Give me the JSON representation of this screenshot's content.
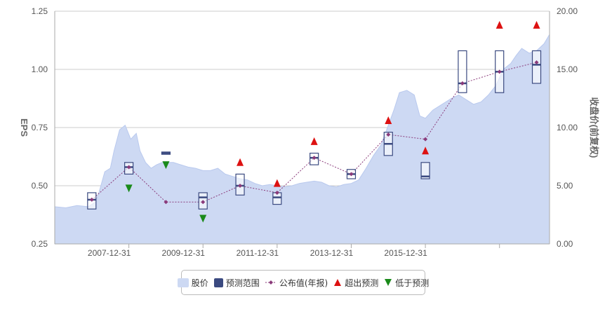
{
  "chart_data": {
    "type": "line",
    "left_axis": {
      "label": "EPS",
      "range": [
        0.25,
        1.25
      ],
      "ticks": [
        "0.25",
        "0.50",
        "0.75",
        "1.00",
        "1.25"
      ]
    },
    "right_axis": {
      "label": "收盘价(前复权)",
      "range": [
        0,
        20
      ],
      "ticks": [
        "0.00",
        "5.00",
        "10.00",
        "15.00",
        "20.00"
      ]
    },
    "x_range": [
      2006.0,
      2019.35
    ],
    "x_ticks": [
      {
        "x": 2008.0,
        "label": "2007-12-31"
      },
      {
        "x": 2010.0,
        "label": "2009-12-31"
      },
      {
        "x": 2012.0,
        "label": "2011-12-31"
      },
      {
        "x": 2014.0,
        "label": "2013-12-31"
      },
      {
        "x": 2016.0,
        "label": "2015-12-31"
      },
      {
        "x": 2018.0,
        "label": ""
      }
    ],
    "grid": true,
    "legend": [
      "股价",
      "预测范围",
      "公布值(年报)",
      "超出预测",
      "低于预测"
    ],
    "colors": {
      "price_fill": "#cdd9f3",
      "price_line": "#b9c9ee",
      "range_box": "#3b4a80",
      "eps_line": "#8a3a7a",
      "above": "#dd1111",
      "below": "#1a8a1a",
      "grid": "#cccccc"
    },
    "price_series": [
      [
        2006.0,
        3.2
      ],
      [
        2006.3,
        3.1
      ],
      [
        2006.6,
        3.3
      ],
      [
        2006.9,
        3.2
      ],
      [
        2007.1,
        3.6
      ],
      [
        2007.2,
        4.5
      ],
      [
        2007.35,
        6.2
      ],
      [
        2007.5,
        6.5
      ],
      [
        2007.6,
        8.0
      ],
      [
        2007.75,
        9.8
      ],
      [
        2007.9,
        10.2
      ],
      [
        2008.05,
        9.0
      ],
      [
        2008.2,
        9.5
      ],
      [
        2008.3,
        8.0
      ],
      [
        2008.45,
        7.0
      ],
      [
        2008.6,
        6.5
      ],
      [
        2008.75,
        6.8
      ],
      [
        2008.9,
        7.0
      ],
      [
        2009.2,
        7.0
      ],
      [
        2009.4,
        6.8
      ],
      [
        2009.6,
        6.6
      ],
      [
        2009.8,
        6.5
      ],
      [
        2010.0,
        6.3
      ],
      [
        2010.2,
        6.3
      ],
      [
        2010.4,
        6.5
      ],
      [
        2010.6,
        6.0
      ],
      [
        2010.8,
        5.8
      ],
      [
        2011.0,
        5.6
      ],
      [
        2011.2,
        5.5
      ],
      [
        2011.4,
        5.2
      ],
      [
        2011.6,
        5.0
      ],
      [
        2011.8,
        5.1
      ],
      [
        2012.0,
        5.0
      ],
      [
        2012.2,
        4.9
      ],
      [
        2012.4,
        5.0
      ],
      [
        2012.6,
        5.2
      ],
      [
        2012.8,
        5.3
      ],
      [
        2013.0,
        5.4
      ],
      [
        2013.2,
        5.3
      ],
      [
        2013.4,
        5.0
      ],
      [
        2013.6,
        4.9
      ],
      [
        2013.8,
        5.1
      ],
      [
        2014.0,
        5.2
      ],
      [
        2014.2,
        5.5
      ],
      [
        2014.4,
        6.5
      ],
      [
        2014.6,
        7.6
      ],
      [
        2014.8,
        8.5
      ],
      [
        2015.0,
        10.2
      ],
      [
        2015.15,
        11.5
      ],
      [
        2015.3,
        13.0
      ],
      [
        2015.5,
        13.2
      ],
      [
        2015.7,
        12.8
      ],
      [
        2015.85,
        11.0
      ],
      [
        2016.0,
        10.8
      ],
      [
        2016.2,
        11.5
      ],
      [
        2016.45,
        12.0
      ],
      [
        2016.7,
        12.5
      ],
      [
        2016.9,
        12.8
      ],
      [
        2017.1,
        12.4
      ],
      [
        2017.3,
        12.0
      ],
      [
        2017.5,
        12.2
      ],
      [
        2017.7,
        12.8
      ],
      [
        2017.9,
        13.6
      ],
      [
        2018.1,
        15.0
      ],
      [
        2018.3,
        15.5
      ],
      [
        2018.45,
        16.2
      ],
      [
        2018.6,
        16.8
      ],
      [
        2018.8,
        16.4
      ],
      [
        2019.0,
        16.6
      ],
      [
        2019.2,
        17.2
      ],
      [
        2019.35,
        18.0
      ]
    ],
    "eps_reported": [
      {
        "year": 2007,
        "x": 2007.0,
        "value": 0.44
      },
      {
        "year": 2008,
        "x": 2008.0,
        "value": 0.58
      },
      {
        "year": 2009,
        "x": 2009.0,
        "value": 0.43
      },
      {
        "year": 2010,
        "x": 2010.0,
        "value": 0.43
      },
      {
        "year": 2011,
        "x": 2011.0,
        "value": 0.5
      },
      {
        "year": 2012,
        "x": 2012.0,
        "value": 0.47
      },
      {
        "year": 2013,
        "x": 2013.0,
        "value": 0.62
      },
      {
        "year": 2014,
        "x": 2014.0,
        "value": 0.55
      },
      {
        "year": 2015,
        "x": 2015.0,
        "value": 0.72
      },
      {
        "year": 2016,
        "x": 2016.0,
        "value": 0.7
      },
      {
        "year": 2017,
        "x": 2017.0,
        "value": 0.94
      },
      {
        "year": 2018,
        "x": 2018.0,
        "value": 0.99
      },
      {
        "year": 2019,
        "x": 2019.0,
        "value": 1.03
      }
    ],
    "forecast_ranges": [
      {
        "x": 2007.0,
        "low": 0.4,
        "high": 0.47,
        "mean": 0.44
      },
      {
        "x": 2008.0,
        "low": 0.55,
        "high": 0.6,
        "mean": 0.58
      },
      {
        "x": 2009.0,
        "low": 0.635,
        "high": 0.645,
        "mean": 0.64
      },
      {
        "x": 2010.0,
        "low": 0.4,
        "high": 0.47,
        "mean": 0.45
      },
      {
        "x": 2011.0,
        "low": 0.46,
        "high": 0.55,
        "mean": 0.5
      },
      {
        "x": 2012.0,
        "low": 0.42,
        "high": 0.47,
        "mean": 0.45
      },
      {
        "x": 2013.0,
        "low": 0.59,
        "high": 0.64,
        "mean": 0.62
      },
      {
        "x": 2014.0,
        "low": 0.53,
        "high": 0.57,
        "mean": 0.55
      },
      {
        "x": 2015.0,
        "low": 0.63,
        "high": 0.73,
        "mean": 0.68
      },
      {
        "x": 2016.0,
        "low": 0.53,
        "high": 0.6,
        "mean": 0.54
      },
      {
        "x": 2017.0,
        "low": 0.9,
        "high": 1.08,
        "mean": 0.94
      },
      {
        "x": 2018.0,
        "low": 0.9,
        "high": 1.08,
        "mean": 0.99
      },
      {
        "x": 2019.0,
        "low": 0.94,
        "high": 1.08,
        "mean": 1.02
      }
    ],
    "markers": [
      {
        "type": "below",
        "x": 2008.0,
        "value": 0.49
      },
      {
        "type": "below",
        "x": 2009.0,
        "value": 0.59
      },
      {
        "type": "below",
        "x": 2010.0,
        "value": 0.36
      },
      {
        "type": "above",
        "x": 2011.0,
        "value": 0.6
      },
      {
        "type": "above",
        "x": 2012.0,
        "value": 0.51
      },
      {
        "type": "above",
        "x": 2013.0,
        "value": 0.69
      },
      {
        "type": "above",
        "x": 2015.0,
        "value": 0.78
      },
      {
        "type": "above",
        "x": 2016.0,
        "value": 0.65
      },
      {
        "type": "above",
        "x": 2018.0,
        "value": 1.19
      },
      {
        "type": "above",
        "x": 2019.0,
        "value": 1.19
      }
    ]
  },
  "legend_items": [
    {
      "label": "股价",
      "kind": "area"
    },
    {
      "label": "预测范围",
      "kind": "box"
    },
    {
      "label": "公布值(年报)",
      "kind": "line"
    },
    {
      "label": "超出预测",
      "kind": "above"
    },
    {
      "label": "低于预测",
      "kind": "below"
    }
  ]
}
